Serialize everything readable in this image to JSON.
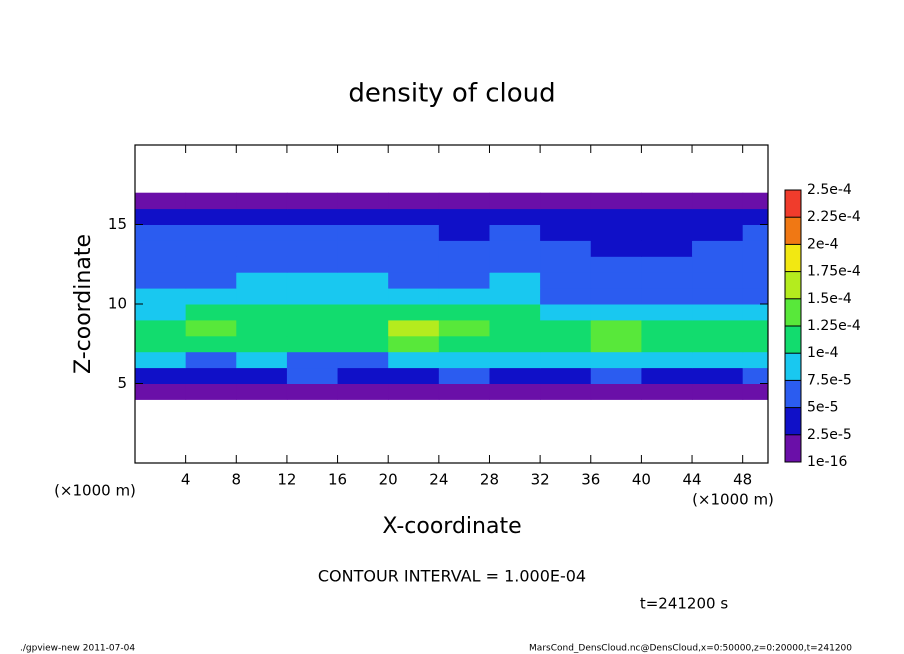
{
  "chart_data": {
    "type": "heatmap",
    "title": "density of cloud",
    "x_label": "X-coordinate",
    "y_label": "Z-coordinate",
    "x_unit": "(×1000 m)",
    "y_unit": "(×1000 m)",
    "xlim": [
      0,
      50
    ],
    "ylim": [
      0,
      20
    ],
    "xticks": [
      4,
      8,
      12,
      16,
      20,
      24,
      28,
      32,
      36,
      40,
      44,
      48
    ],
    "yticks": [
      5,
      10,
      15
    ],
    "x": [
      2,
      6,
      10,
      14,
      18,
      22,
      26,
      30,
      34,
      38,
      42,
      46,
      50
    ],
    "y": [
      4.5,
      5.5,
      6.5,
      7.5,
      8.5,
      9.5,
      10.5,
      11.5,
      12.5,
      13.5,
      14.5,
      15.5,
      16.5
    ],
    "z": [
      [
        1e-05,
        1e-05,
        1e-05,
        1e-05,
        1e-05,
        1e-05,
        1e-05,
        1e-05,
        1e-05,
        1e-05,
        1e-05,
        1e-05,
        1e-05
      ],
      [
        4e-05,
        3e-05,
        4e-05,
        5e-05,
        3e-05,
        4e-05,
        5e-05,
        4e-05,
        4e-05,
        5e-05,
        4e-05,
        4e-05,
        5e-05
      ],
      [
        8e-05,
        7e-05,
        8e-05,
        7e-05,
        6e-05,
        8e-05,
        9e-05,
        8e-05,
        8e-05,
        9e-05,
        9e-05,
        8e-05,
        9e-05
      ],
      [
        0.00011,
        0.00012,
        0.00011,
        0.0001,
        0.00011,
        0.00014,
        0.00012,
        0.00011,
        0.00012,
        0.00013,
        0.00012,
        0.00011,
        0.00012
      ],
      [
        0.00012,
        0.00013,
        0.00012,
        0.00011,
        0.00012,
        0.00016,
        0.00013,
        0.00012,
        0.00011,
        0.00013,
        0.00012,
        0.00012,
        0.00012
      ],
      [
        9e-05,
        0.0001,
        0.0001,
        0.0001,
        0.00011,
        0.00011,
        0.00011,
        0.0001,
        9e-05,
        9e-05,
        9e-05,
        9e-05,
        9e-05
      ],
      [
        8e-05,
        9e-05,
        9e-05,
        9e-05,
        9e-05,
        8e-05,
        9e-05,
        8e-05,
        7e-05,
        7e-05,
        7e-05,
        7e-05,
        7e-05
      ],
      [
        7e-05,
        7e-05,
        8e-05,
        8e-05,
        8e-05,
        7e-05,
        7e-05,
        8e-05,
        6e-05,
        6e-05,
        6e-05,
        6e-05,
        6e-05
      ],
      [
        6e-05,
        6e-05,
        6e-05,
        7e-05,
        7e-05,
        6e-05,
        6e-05,
        7e-05,
        6e-05,
        5e-05,
        5e-05,
        6e-05,
        6e-05
      ],
      [
        5e-05,
        6e-05,
        6e-05,
        6e-05,
        6e-05,
        6e-05,
        5e-05,
        6e-05,
        5e-05,
        4e-05,
        4e-05,
        5e-05,
        5e-05
      ],
      [
        5e-05,
        5e-05,
        5e-05,
        5e-05,
        5e-05,
        5e-05,
        4e-05,
        5e-05,
        4e-05,
        4e-05,
        4e-05,
        4e-05,
        5e-05
      ],
      [
        3e-05,
        3e-05,
        3e-05,
        3e-05,
        3e-05,
        3e-05,
        3e-05,
        3e-05,
        3e-05,
        3e-05,
        3e-05,
        4e-05,
        3e-05
      ],
      [
        1e-05,
        1e-05,
        1e-05,
        1e-05,
        1e-05,
        1e-05,
        1e-05,
        1e-05,
        1e-05,
        1e-05,
        1e-05,
        1e-05,
        1e-05
      ]
    ],
    "levels": [
      {
        "value": 1e-16,
        "label": "1e-16"
      },
      {
        "value": 2.5e-05,
        "label": "2.5e-5"
      },
      {
        "value": 5e-05,
        "label": "5e-5"
      },
      {
        "value": 7.5e-05,
        "label": "7.5e-5"
      },
      {
        "value": 0.0001,
        "label": "1e-4"
      },
      {
        "value": 0.000125,
        "label": "1.25e-4"
      },
      {
        "value": 0.00015,
        "label": "1.5e-4"
      },
      {
        "value": 0.000175,
        "label": "1.75e-4"
      },
      {
        "value": 0.0002,
        "label": "2e-4"
      },
      {
        "value": 0.000225,
        "label": "2.25e-4"
      },
      {
        "value": 0.00025,
        "label": "2.5e-4"
      }
    ],
    "colors": [
      "#6a0fa8",
      "#1010c8",
      "#2b5cf0",
      "#19c8f0",
      "#12dc6e",
      "#58e83a",
      "#b4ec1e",
      "#f2e812",
      "#f07814",
      "#f03c2c",
      "#f49a9a"
    ],
    "contour_interval": "CONTOUR INTERVAL = 1.000E-04",
    "time_label": "t=241200 s",
    "footer_left": "./gpview-new  2011-07-04",
    "footer_right": "MarsCond_DensCloud.nc@DensCloud,x=0:50000,z=0:20000,t=241200"
  }
}
